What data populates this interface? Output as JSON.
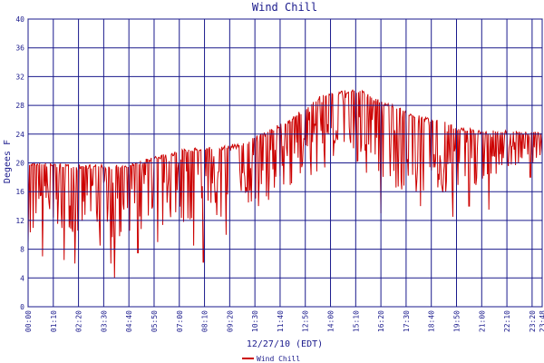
{
  "chart_data": {
    "type": "line",
    "title": "Wind Chill",
    "xlabel": "12/27/10 (EDT)",
    "ylabel": "Degees F",
    "ylim": [
      0,
      40
    ],
    "yticks": [
      0,
      4,
      8,
      12,
      16,
      20,
      24,
      28,
      32,
      36,
      40
    ],
    "xlim_minutes": [
      0,
      1428
    ],
    "xtick_labels": [
      "00:00",
      "01:10",
      "02:20",
      "03:30",
      "04:40",
      "05:50",
      "07:00",
      "08:10",
      "09:20",
      "10:30",
      "11:40",
      "12:50",
      "14:00",
      "15:10",
      "16:20",
      "17:30",
      "18:40",
      "19:50",
      "21:00",
      "22:10",
      "23:20",
      "23:48"
    ],
    "grid": true,
    "legend_position": "bottom-center",
    "series": [
      {
        "name": "Wind Chill",
        "color": "#cc0000",
        "envelope": {
          "x_minutes": [
            0,
            30,
            60,
            100,
            140,
            180,
            240,
            300,
            360,
            420,
            480,
            540,
            600,
            660,
            720,
            750,
            780,
            810,
            840,
            870,
            900,
            930,
            960,
            990,
            1020,
            1080,
            1140,
            1200,
            1260,
            1320,
            1380,
            1428
          ],
          "upper": [
            20,
            20.2,
            20,
            19.9,
            19.8,
            19.8,
            19.7,
            20.2,
            21.0,
            21.8,
            22.3,
            22.3,
            23.0,
            24.4,
            26.0,
            27.0,
            28.2,
            29.3,
            30.0,
            30.2,
            30.2,
            30.0,
            29.1,
            28.5,
            28.0,
            26.7,
            26.0,
            25.0,
            24.5,
            24.5,
            24.5,
            24.5
          ],
          "lower": [
            8,
            9,
            10,
            10.5,
            10,
            10,
            9,
            10,
            11,
            11,
            11.5,
            11.5,
            13,
            14.5,
            16.5,
            17.5,
            18,
            18.5,
            19,
            19.5,
            19.5,
            18.5,
            18,
            17.5,
            16.5,
            15.5,
            15,
            16,
            17,
            19,
            20,
            20
          ],
          "minima": [
            [
              40,
              7
            ],
            [
              100,
              6.5
            ],
            [
              130,
              6
            ],
            [
              200,
              8.5
            ],
            [
              230,
              6
            ],
            [
              240,
              4
            ],
            [
              305,
              7.5
            ],
            [
              360,
              9
            ],
            [
              460,
              8.5
            ],
            [
              487,
              6.2
            ],
            [
              550,
              10
            ],
            [
              640,
              14
            ],
            [
              710,
              17
            ],
            [
              980,
              13
            ],
            [
              1090,
              14
            ],
            [
              1180,
              12.5
            ],
            [
              1225,
              14
            ],
            [
              1280,
              13.5
            ],
            [
              1395,
              18
            ]
          ]
        }
      }
    ]
  }
}
